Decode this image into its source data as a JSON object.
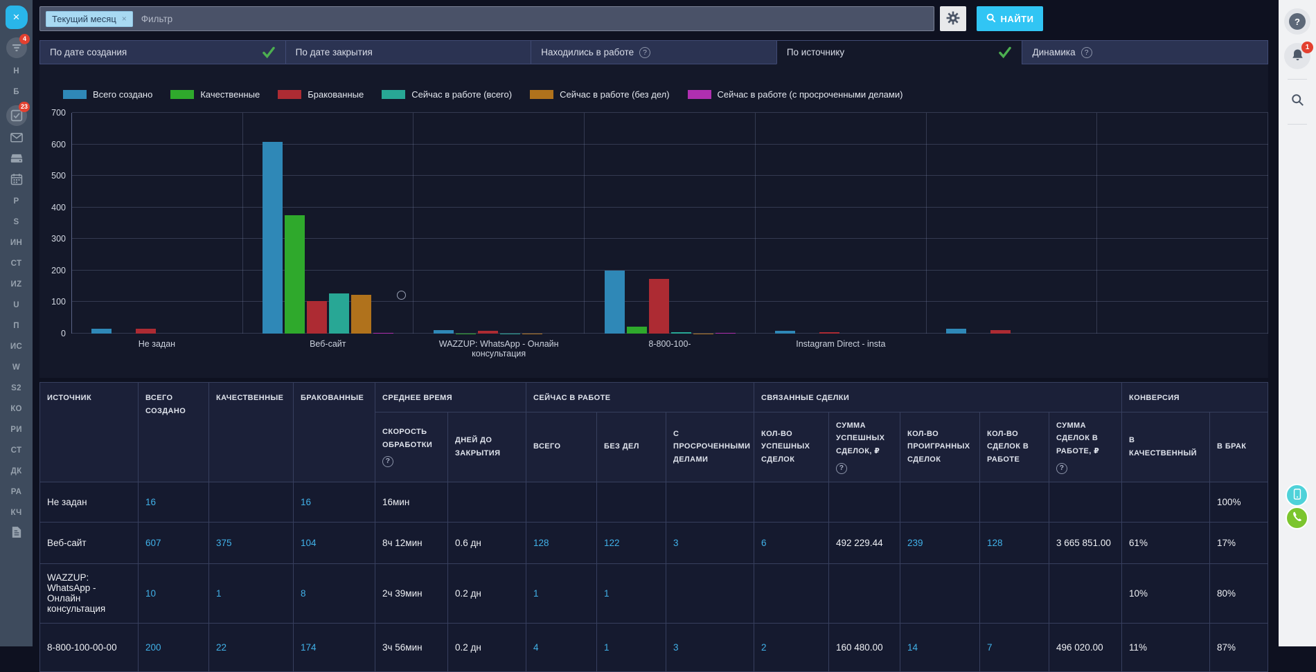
{
  "topbar": {
    "filter_tag": "Текущий месяц",
    "filter_tag_remove": "×",
    "filter_placeholder": "Фильтр",
    "find_button": "НАЙТИ"
  },
  "tabs": [
    {
      "label": "По дате создания",
      "checked": true,
      "active": false,
      "help": false
    },
    {
      "label": "По дате закрытия",
      "checked": false,
      "active": false,
      "help": false
    },
    {
      "label": "Находились в работе",
      "checked": false,
      "active": false,
      "help": true
    },
    {
      "label": "По источнику",
      "checked": true,
      "active": true,
      "help": false
    },
    {
      "label": "Динамика",
      "checked": false,
      "active": false,
      "help": true
    }
  ],
  "chart_data": {
    "type": "bar",
    "title": "",
    "categories": [
      "Не задан",
      "Веб-сайт",
      "WAZZUP: WhatsApp - Онлайн консультация",
      "8-800-100-",
      "Instagram Direct - insta",
      ""
    ],
    "series": [
      {
        "name": "Всего создано",
        "color": "#2f88b7",
        "values": [
          16,
          607,
          10,
          200,
          8,
          16
        ]
      },
      {
        "name": "Качественные",
        "color": "#2fa92c",
        "values": [
          0,
          375,
          1,
          22,
          0,
          0
        ]
      },
      {
        "name": "Бракованные",
        "color": "#ad2b33",
        "values": [
          16,
          104,
          8,
          174,
          5,
          12
        ]
      },
      {
        "name": "Сейчас в работе (всего)",
        "color": "#28a795",
        "values": [
          0,
          128,
          1,
          4,
          0,
          0
        ]
      },
      {
        "name": "Сейчас в работе (без дел)",
        "color": "#b0721c",
        "values": [
          0,
          122,
          1,
          1,
          0,
          0
        ]
      },
      {
        "name": "Сейчас в работе (с просроченными делами)",
        "color": "#b02fb0",
        "values": [
          0,
          3,
          0,
          3,
          0,
          0
        ]
      }
    ],
    "ylim": [
      0,
      700
    ],
    "y_ticks": [
      0,
      100,
      200,
      300,
      400,
      500,
      600,
      700
    ],
    "grid": true,
    "legend_position": "top"
  },
  "table": {
    "groups": {
      "avg_time": "СРЕДНЕЕ ВРЕМЯ",
      "in_work": "СЕЙЧАС В РАБОТЕ",
      "linked_deals": "СВЯЗАННЫЕ СДЕЛКИ",
      "conversion": "КОНВЕРСИЯ"
    },
    "headers": {
      "source": "ИСТОЧНИК",
      "created": "ВСЕГО СОЗДАНО",
      "quality": "КАЧЕСТВЕННЫЕ",
      "defective": "БРАКОВАННЫЕ",
      "speed": "СКОРОСТЬ ОБРАБОТКИ",
      "days_to_close": "ДНЕЙ ДО ЗАКРЫТИЯ",
      "total": "ВСЕГО",
      "no_activities": "БЕЗ ДЕЛ",
      "overdue": "С ПРОСРОЧЕННЫМИ ДЕЛАМИ",
      "won_count": "КОЛ-ВО УСПЕШНЫХ СДЕЛОК",
      "won_sum": "СУММА УСПЕШНЫХ СДЕЛОК, ₽",
      "lost_count": "КОЛ-ВО ПРОИГРАННЫХ СДЕЛОК",
      "in_progress_count": "КОЛ-ВО СДЕЛОК В РАБОТЕ",
      "in_progress_sum": "СУММА СДЕЛОК В РАБОТЕ, ₽",
      "to_quality": "В КАЧЕСТВЕННЫЙ",
      "to_junk": "В БРАК"
    },
    "rows": [
      [
        "Не задан",
        "16",
        "",
        "16",
        "16мин",
        "",
        "",
        "",
        "",
        "",
        "",
        "",
        "",
        "",
        "",
        "100%"
      ],
      [
        "Веб-сайт",
        "607",
        "375",
        "104",
        "8ч 12мин",
        "0.6 дн",
        "128",
        "122",
        "3",
        "6",
        "492 229.44",
        "239",
        "128",
        "3 665 851.00",
        "61%",
        "17%"
      ],
      [
        "WAZZUP: WhatsApp - Онлайн консультация",
        "10",
        "1",
        "8",
        "2ч 39мин",
        "0.2 дн",
        "1",
        "1",
        "",
        "",
        "",
        "",
        "",
        "",
        "10%",
        "80%"
      ],
      [
        "8-800-100-00-00",
        "200",
        "22",
        "174",
        "3ч 56мин",
        "0.2 дн",
        "4",
        "1",
        "3",
        "2",
        "160 480.00",
        "14",
        "7",
        "496 020.00",
        "11%",
        "87%"
      ]
    ]
  },
  "sidebar_left": {
    "close_label": "×",
    "items": [
      {
        "type": "icon",
        "name": "filter",
        "badge": "4"
      },
      {
        "type": "text",
        "label": "Н"
      },
      {
        "type": "text",
        "label": "Б"
      },
      {
        "type": "icon",
        "name": "tasks",
        "badge": "23"
      },
      {
        "type": "icon",
        "name": "mail"
      },
      {
        "type": "icon",
        "name": "drive"
      },
      {
        "type": "icon",
        "name": "calendar"
      },
      {
        "type": "text",
        "label": "Р"
      },
      {
        "type": "text",
        "label": "S"
      },
      {
        "type": "text",
        "label": "ИН"
      },
      {
        "type": "text",
        "label": "СТ"
      },
      {
        "type": "text",
        "label": "ИZ"
      },
      {
        "type": "text",
        "label": "U"
      },
      {
        "type": "text",
        "label": "П"
      },
      {
        "type": "text",
        "label": "ИС"
      },
      {
        "type": "text",
        "label": "W"
      },
      {
        "type": "text",
        "label": "S2"
      },
      {
        "type": "text",
        "label": "КО"
      },
      {
        "type": "text",
        "label": "РИ"
      },
      {
        "type": "text",
        "label": "СТ"
      },
      {
        "type": "text",
        "label": "ДК"
      },
      {
        "type": "text",
        "label": "РА"
      },
      {
        "type": "text",
        "label": "КЧ"
      },
      {
        "type": "icon",
        "name": "document"
      }
    ]
  },
  "sidebar_right": {
    "help_label": "?",
    "bell_badge": "1"
  },
  "colors": {
    "accent_blue": "#31c5f4",
    "link_blue": "#41b1e8",
    "badge_red": "#e3402f",
    "check_green": "#4caf50",
    "float_teal": "#4fd2d9",
    "float_green": "#7cc52e"
  }
}
